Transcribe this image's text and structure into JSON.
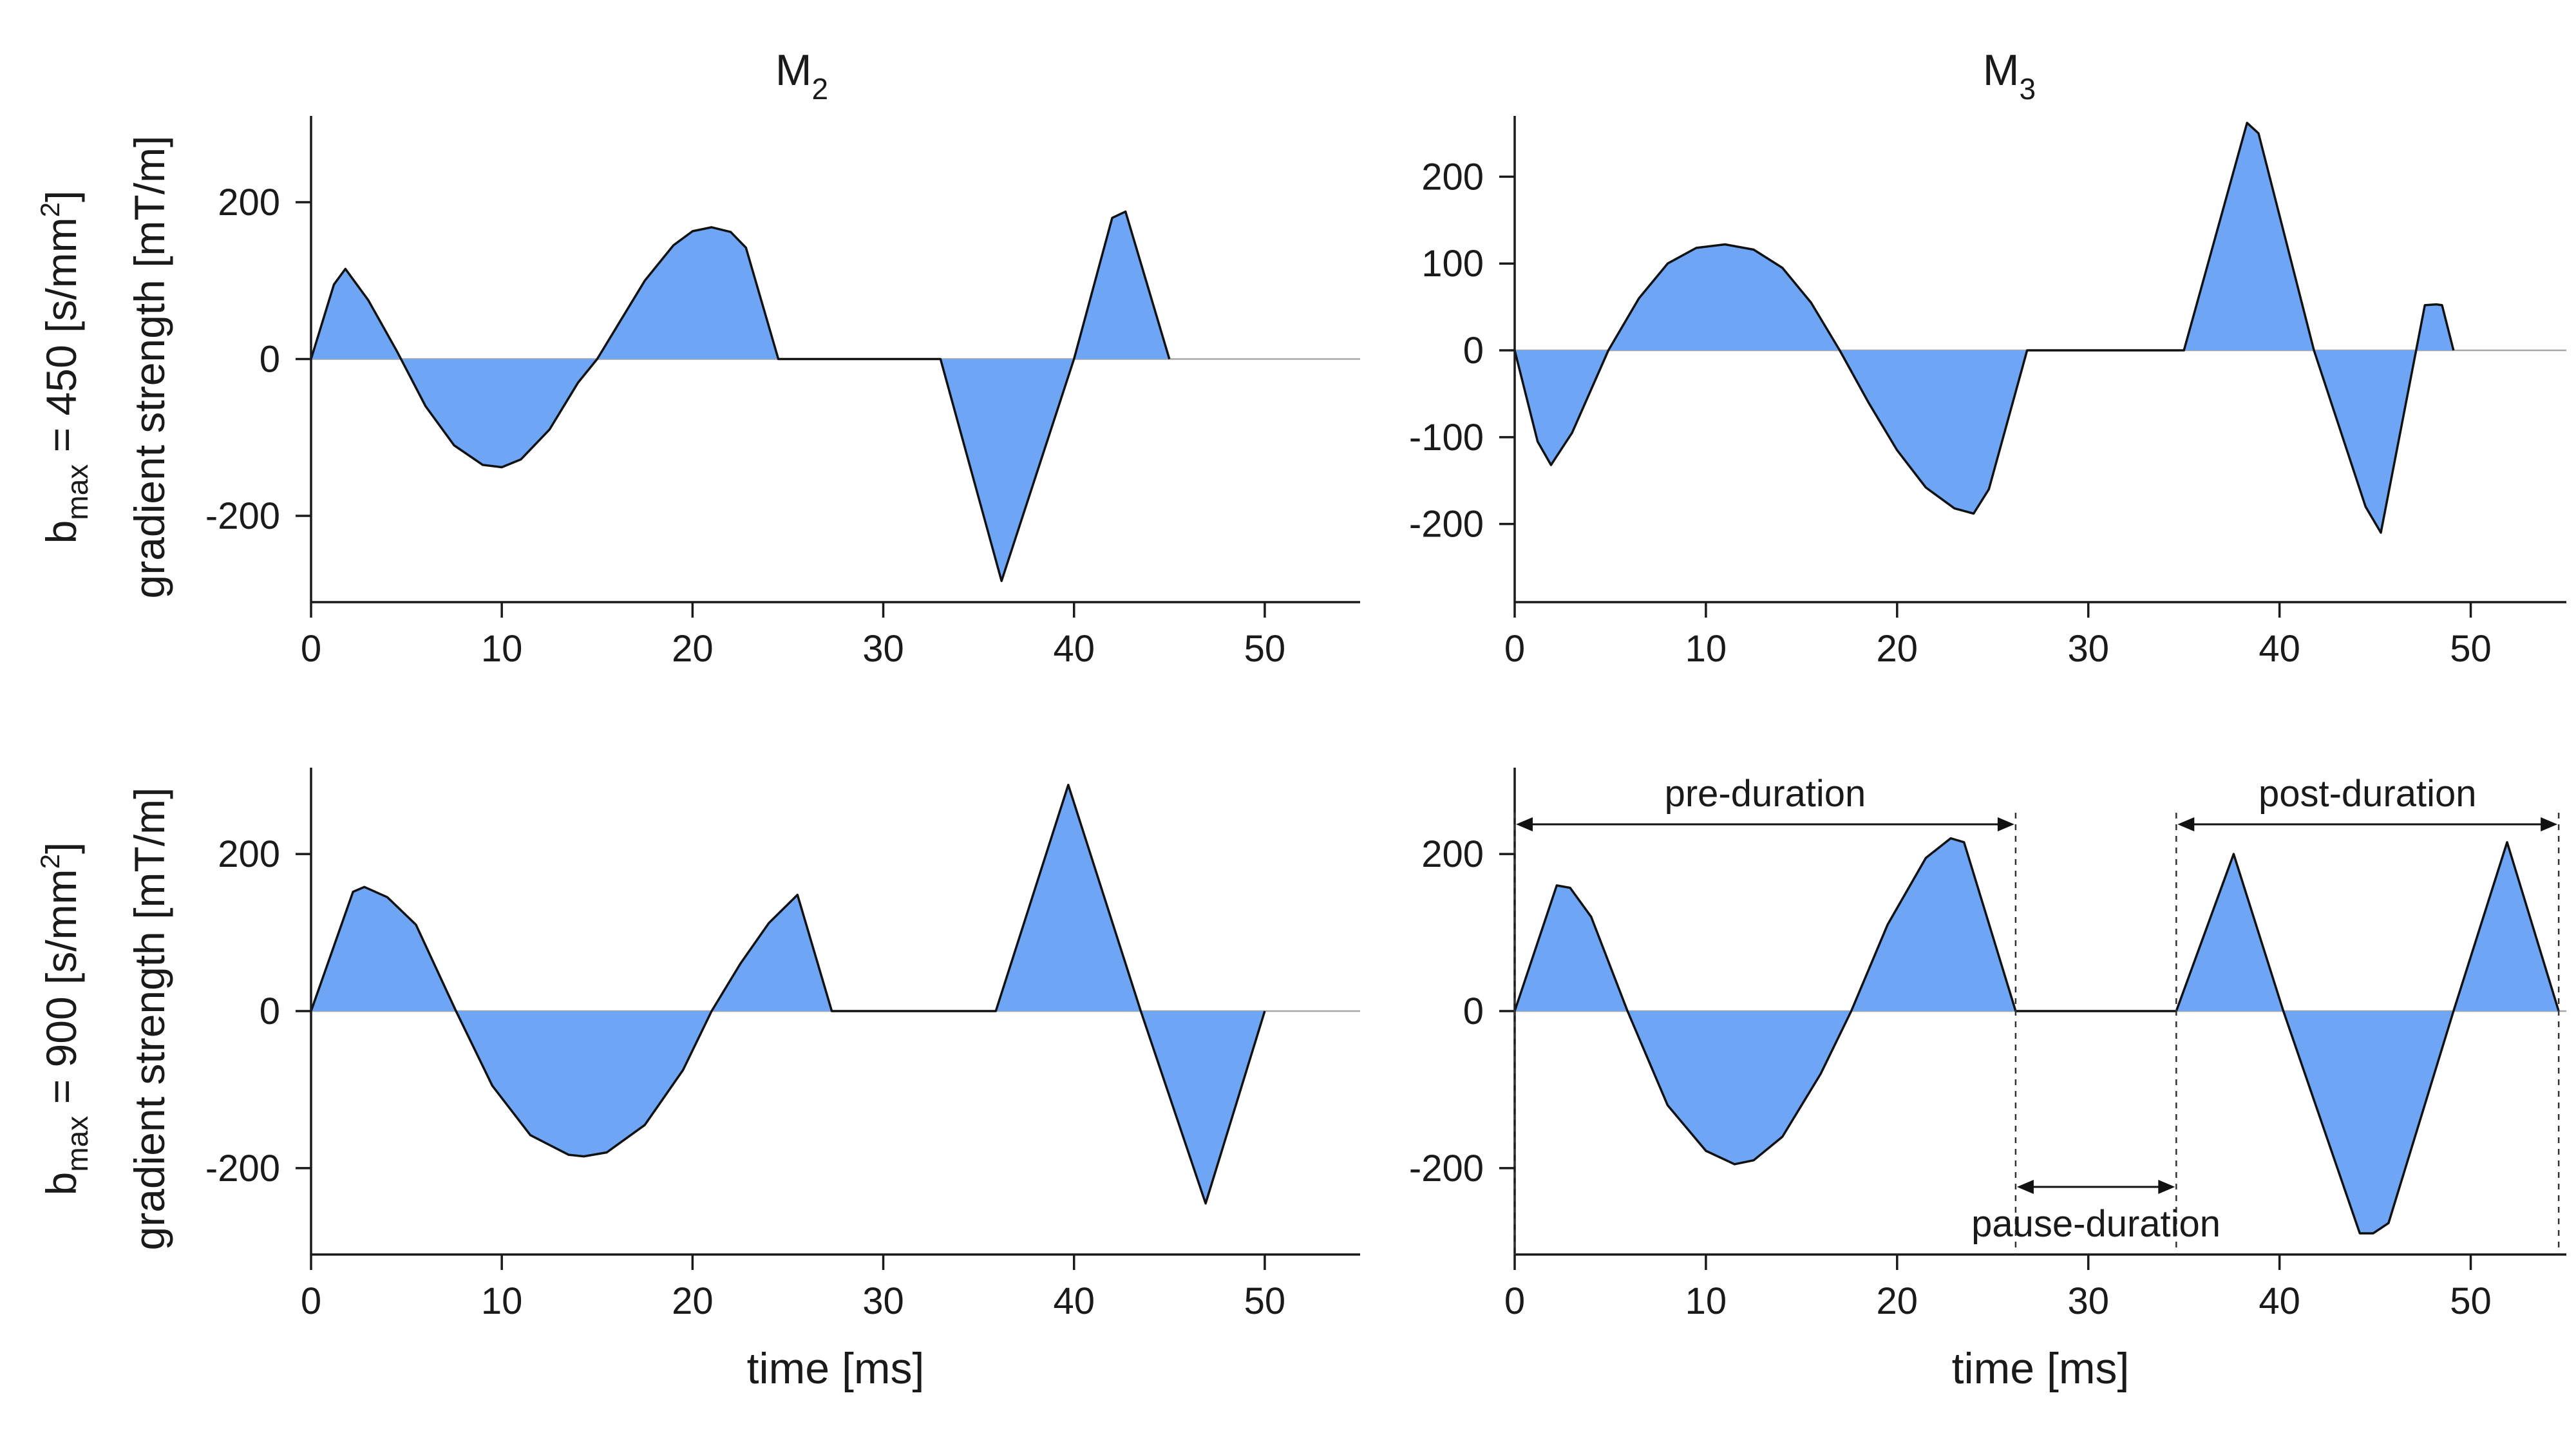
{
  "chart_data": [
    {
      "type": "area",
      "id": "m2_450",
      "title": "M2",
      "title_main": "M",
      "title_sub": "2",
      "xlabel": "",
      "ylabel_top": "b",
      "ylabel_sub": "max",
      "ylabel_rest": " = 450 [s/mm",
      "ylabel_sup": "2",
      "ylabel_close": "]",
      "ylabel2": "gradient strength [mT/m]",
      "xlim": [
        0,
        55
      ],
      "ylim": [
        -310,
        310
      ],
      "xticks": [
        0,
        10,
        20,
        30,
        40,
        50
      ],
      "yticks": [
        -200,
        0,
        200
      ],
      "x": [
        0,
        1.2,
        1.8,
        3,
        4.5,
        6,
        7.5,
        9,
        10,
        11,
        12.5,
        14,
        15,
        16,
        17.5,
        19,
        20,
        21,
        22,
        22.8,
        24.5,
        27,
        30,
        33,
        36.2,
        40,
        42,
        42.7,
        45
      ],
      "y": [
        0,
        95,
        115,
        75,
        10,
        -60,
        -110,
        -135,
        -138,
        -128,
        -90,
        -30,
        0,
        40,
        100,
        145,
        163,
        168,
        162,
        142,
        0,
        0,
        0,
        0,
        -283,
        0,
        180,
        188,
        0
      ]
    },
    {
      "type": "area",
      "id": "m3_450",
      "title": "M3",
      "title_main": "M",
      "title_sub": "3",
      "xlabel": "",
      "xlim": [
        0,
        55
      ],
      "ylim": [
        -290,
        270
      ],
      "xticks": [
        0,
        10,
        20,
        30,
        40,
        50
      ],
      "yticks": [
        -200,
        -100,
        0,
        100,
        200
      ],
      "x": [
        0,
        1.2,
        1.9,
        3,
        4.9,
        6.5,
        8,
        9.5,
        11,
        12.5,
        14,
        15.5,
        17,
        18.5,
        20,
        21.5,
        23,
        24,
        24.8,
        26.8,
        30,
        35,
        38.3,
        38.9,
        41.8,
        44.5,
        45.3,
        47.6,
        48.2,
        48.5,
        49.1
      ],
      "y": [
        0,
        -105,
        -132,
        -95,
        0,
        60,
        100,
        118,
        122,
        116,
        95,
        55,
        0,
        -60,
        -115,
        -158,
        -182,
        -188,
        -160,
        0,
        0,
        0,
        262,
        250,
        0,
        -180,
        -210,
        52,
        53,
        52,
        0
      ]
    },
    {
      "type": "area",
      "id": "m2_900",
      "title": "",
      "xlabel": "time [ms]",
      "ylabel_top": "b",
      "ylabel_sub": "max",
      "ylabel_rest": " = 900 [s/mm",
      "ylabel_sup": "2",
      "ylabel_close": "]",
      "ylabel2": "gradient strength [mT/m]",
      "xlim": [
        0,
        55
      ],
      "ylim": [
        -310,
        310
      ],
      "xticks": [
        0,
        10,
        20,
        30,
        40,
        50
      ],
      "yticks": [
        -200,
        0,
        200
      ],
      "x": [
        0,
        2.2,
        2.8,
        4,
        5.5,
        7.6,
        9.5,
        11.5,
        13.5,
        14.3,
        15.5,
        17.5,
        19.5,
        21,
        22.5,
        24,
        25.5,
        27.3,
        30,
        35.9,
        39.7,
        43.5,
        46.9,
        50
      ],
      "y": [
        0,
        152,
        158,
        145,
        110,
        0,
        -95,
        -158,
        -183,
        -185,
        -180,
        -145,
        -75,
        0,
        60,
        112,
        148,
        0,
        0,
        0,
        288,
        0,
        -245,
        0
      ]
    },
    {
      "type": "area",
      "id": "m3_900",
      "title": "",
      "xlabel": "time [ms]",
      "xlim": [
        0,
        55
      ],
      "ylim": [
        -310,
        310
      ],
      "xticks": [
        0,
        10,
        20,
        30,
        40,
        50
      ],
      "yticks": [
        -200,
        0,
        200
      ],
      "x": [
        0,
        2.2,
        2.9,
        4,
        5.9,
        8,
        10,
        11.5,
        12.5,
        14,
        16,
        17.6,
        19.5,
        21.5,
        22.8,
        23.5,
        26.2,
        30,
        34.6,
        37.6,
        40.2,
        44.2,
        44.9,
        45.7,
        49.1,
        51.9,
        54.6
      ],
      "y": [
        0,
        160,
        157,
        120,
        0,
        -120,
        -178,
        -195,
        -190,
        -160,
        -80,
        0,
        110,
        195,
        220,
        215,
        0,
        0,
        0,
        200,
        0,
        -283,
        -283,
        -270,
        0,
        215,
        0
      ],
      "annotations": [
        {
          "label": "pre-duration",
          "from": 0,
          "to": 26.2
        },
        {
          "label": "pause-duration",
          "from": 26.2,
          "to": 34.6
        },
        {
          "label": "post-duration",
          "from": 34.6,
          "to": 54.6
        }
      ]
    }
  ],
  "colors": {
    "fill": "#6ea6f5",
    "line": "#111111",
    "zero_line": "#a8a8a8",
    "text": "#1a1a1a"
  }
}
